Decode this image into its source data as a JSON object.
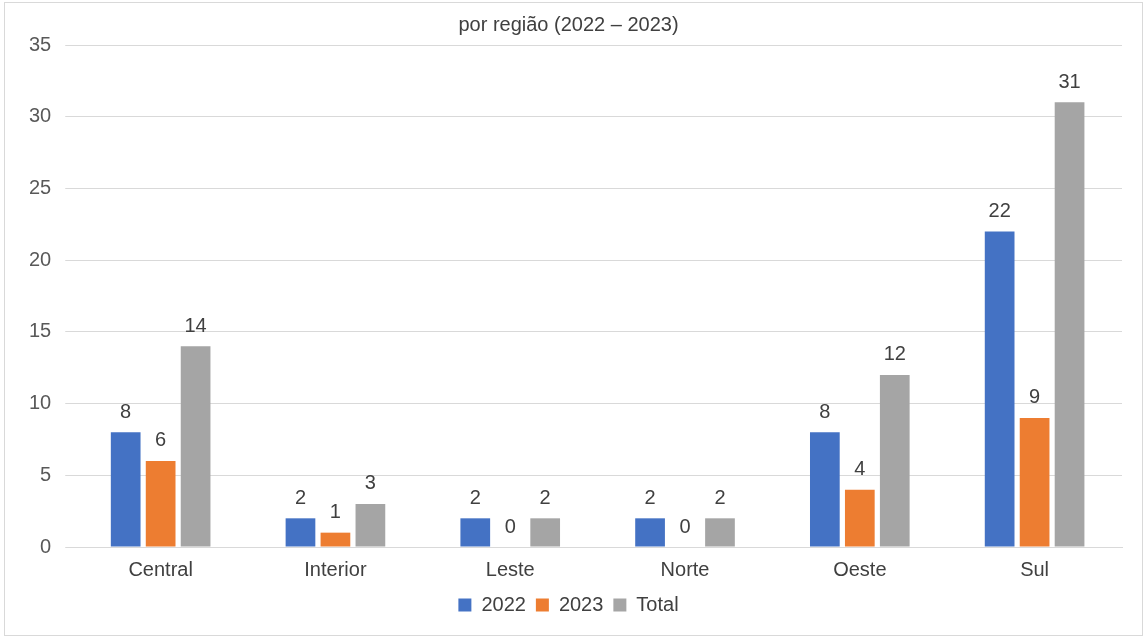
{
  "chart_data": {
    "type": "bar",
    "title": "por região (2022 – 2023)",
    "categories": [
      "Central",
      "Interior",
      "Leste",
      "Norte",
      "Oeste",
      "Sul"
    ],
    "series": [
      {
        "name": "2022",
        "color": "#4472c4",
        "values": [
          8,
          2,
          2,
          2,
          8,
          22
        ]
      },
      {
        "name": "2023",
        "color": "#ed7d31",
        "values": [
          6,
          1,
          0,
          0,
          4,
          9
        ]
      },
      {
        "name": "Total",
        "color": "#a5a5a5",
        "values": [
          14,
          3,
          2,
          2,
          12,
          31
        ]
      }
    ],
    "ylim": [
      0,
      35
    ],
    "yticks": [
      0,
      5,
      10,
      15,
      20,
      25,
      30,
      35
    ],
    "grid": "y",
    "legend": "bottom",
    "data_labels": true
  }
}
